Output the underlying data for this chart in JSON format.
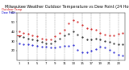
{
  "title": "Milwaukee Weather Outdoor Temperature vs Dew Point (24 Hours)",
  "title_fontsize": 3.5,
  "bg_color": "#ffffff",
  "plot_bg_color": "#ffffff",
  "grid_color": "#888888",
  "tick_fontsize": 2.8,
  "temp_x": [
    1,
    2,
    3,
    4,
    5,
    6,
    7,
    8,
    9,
    10,
    11,
    12,
    13,
    14,
    15,
    16,
    17,
    18,
    19,
    20,
    21,
    22,
    23,
    24
  ],
  "temp_y": [
    40,
    39,
    38,
    36,
    35,
    33,
    32,
    32,
    35,
    39,
    42,
    49,
    52,
    50,
    47,
    44,
    43,
    42,
    39,
    37,
    36,
    36,
    38,
    39
  ],
  "dew_x": [
    1,
    2,
    3,
    4,
    5,
    6,
    7,
    8,
    9,
    10,
    11,
    12,
    13,
    14,
    15,
    16,
    17,
    18,
    19,
    20,
    21,
    22,
    23,
    24
  ],
  "dew_y": [
    28,
    27,
    27,
    26,
    25,
    24,
    24,
    23,
    23,
    24,
    25,
    25,
    26,
    21,
    18,
    18,
    20,
    22,
    24,
    23,
    21,
    18,
    16,
    15
  ],
  "black_x": [
    1,
    2,
    3,
    4,
    5,
    6,
    7,
    8,
    9,
    10,
    11,
    12,
    13,
    14,
    15,
    16,
    17,
    18,
    19,
    20,
    21,
    22,
    23,
    24
  ],
  "black_y": [
    35,
    34,
    33,
    32,
    31,
    29,
    28,
    28,
    30,
    33,
    36,
    38,
    40,
    37,
    34,
    32,
    32,
    33,
    32,
    30,
    29,
    28,
    27,
    27
  ],
  "ylim": [
    10,
    60
  ],
  "xlim": [
    0.5,
    24.5
  ],
  "yticks": [
    20,
    30,
    40,
    50,
    60
  ],
  "ytick_labels": [
    "20",
    "30",
    "40",
    "50",
    "60"
  ],
  "xticks": [
    1,
    3,
    5,
    7,
    9,
    11,
    13,
    15,
    17,
    19,
    21,
    23
  ],
  "grid_x": [
    3,
    5,
    7,
    9,
    11,
    13,
    15,
    17,
    19,
    21,
    23
  ],
  "temp_color": "#cc0000",
  "dew_color": "#0000cc",
  "black_color": "#000000",
  "marker_size": 1.0,
  "legend_label_temp": "Outdoor Temp",
  "legend_label_dew": "Dew Point",
  "legend_color_temp": "#cc0000",
  "legend_color_dew": "#0000cc",
  "red_line_y": 36,
  "red_line_x1": 0.6,
  "red_line_x2": 1.5
}
